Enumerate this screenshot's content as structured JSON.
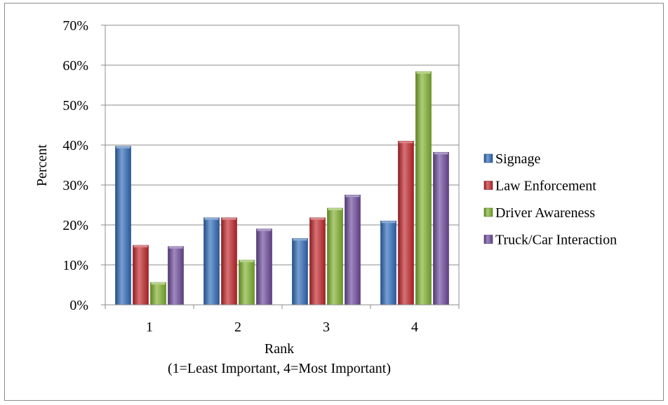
{
  "chart_data": {
    "type": "bar",
    "categories": [
      "1",
      "2",
      "3",
      "4"
    ],
    "series": [
      {
        "name": "Signage",
        "values": [
          39.7,
          21.8,
          16.6,
          21.0
        ],
        "color": "#2e6ab8"
      },
      {
        "name": "Law Enforcement",
        "values": [
          14.9,
          21.8,
          21.8,
          41.0
        ],
        "color": "#c0262a"
      },
      {
        "name": "Driver Awareness",
        "values": [
          5.6,
          11.2,
          24.2,
          58.4
        ],
        "color": "#7fb12e"
      },
      {
        "name": "Truck/Car Interaction",
        "values": [
          14.6,
          19.0,
          27.5,
          38.2
        ],
        "color": "#6c4a9b"
      }
    ],
    "ylim": [
      0,
      70
    ],
    "yticks": [
      "0%",
      "10%",
      "20%",
      "30%",
      "40%",
      "50%",
      "60%",
      "70%"
    ],
    "ylabel": "Percent",
    "xlabel": "Rank",
    "xlabel_sub": "(1=Least Important, 4=Most Important)",
    "legend_position": "right",
    "grid": true
  }
}
